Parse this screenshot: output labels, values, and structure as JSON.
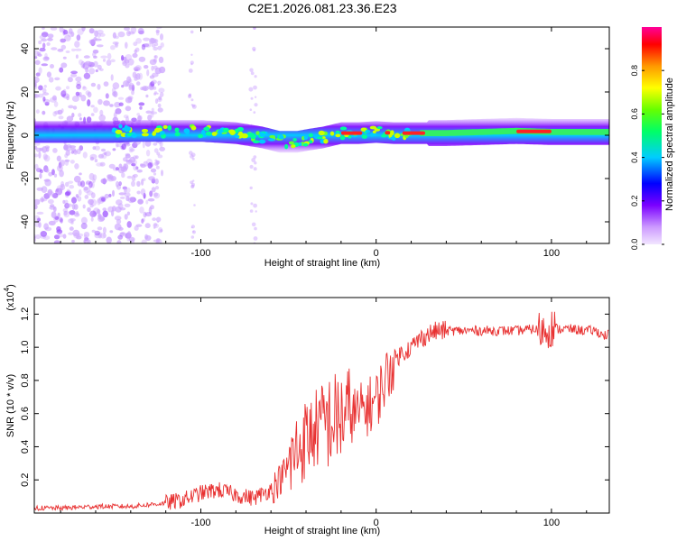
{
  "figure_title": "C2E1.2026.081.23.36.E23",
  "chart_data": [
    {
      "type": "heatmap",
      "title": "C2E1.2026.081.23.36.E23",
      "xlabel": "Height of straight line (km)",
      "ylabel": "Frequency (Hz)",
      "xlim": [
        -195,
        133
      ],
      "ylim": [
        -50,
        50
      ],
      "x_ticks": [
        -100,
        0,
        100
      ],
      "x_tick_labels": [
        "-100",
        "0",
        "100"
      ],
      "y_ticks": [
        -40,
        -20,
        0,
        20,
        40
      ],
      "y_tick_labels": [
        "-40",
        "-20",
        "0",
        "20",
        "40"
      ],
      "colorbar": {
        "label": "Normalized spectral amplitude",
        "range": [
          0,
          1
        ],
        "ticks": [
          0.0,
          0.2,
          0.4,
          0.6,
          0.8
        ],
        "tick_labels": [
          "0.0",
          "0.2",
          "0.4",
          "0.6",
          "0.8"
        ],
        "colors": [
          "#cc99ff",
          "#7a00ff",
          "#0000ff",
          "#00ccff",
          "#00ff66",
          "#66ff00",
          "#ffff00",
          "#ff9900",
          "#ff0000",
          "#ff0099"
        ]
      },
      "band_center_trace": {
        "x": [
          -195,
          -150,
          -135,
          -100,
          -80,
          -65,
          -55,
          -45,
          -38,
          -30,
          -20,
          -10,
          0,
          10,
          20,
          40,
          60,
          80,
          100,
          115,
          133
        ],
        "y": [
          1.5,
          1.5,
          2,
          2,
          1,
          -1,
          -3,
          -3,
          -2,
          -1,
          1,
          1,
          1.5,
          1,
          1,
          1,
          1.5,
          2,
          1.5,
          1.5,
          1.5
        ]
      },
      "noise_region_km": [
        -195,
        -130
      ]
    },
    {
      "type": "line",
      "xlabel": "Height of straight line (km)",
      "ylabel": "SNR (10 * v/v)",
      "y_multiplier_label": "(x10",
      "y_multiplier_exponent": "4",
      "y_multiplier_close": ")",
      "xlim": [
        -195,
        133
      ],
      "ylim": [
        0,
        1.3
      ],
      "x_ticks": [
        -100,
        0,
        100
      ],
      "x_tick_labels": [
        "-100",
        "0",
        "100"
      ],
      "y_ticks": [
        0.2,
        0.4,
        0.6,
        0.8,
        1.0,
        1.2
      ],
      "y_tick_labels": [
        "0.2",
        "0.4",
        "0.6",
        "0.8",
        "1.0",
        "1.2"
      ],
      "series": [
        {
          "name": "SNR",
          "color": "#e83030",
          "x": [
            -195,
            -180,
            -160,
            -140,
            -120,
            -110,
            -100,
            -90,
            -80,
            -70,
            -60,
            -55,
            -50,
            -45,
            -40,
            -35,
            -30,
            -25,
            -20,
            -15,
            -10,
            -5,
            0,
            5,
            10,
            15,
            20,
            25,
            30,
            35,
            40,
            50,
            60,
            70,
            80,
            90,
            95,
            100,
            105,
            110,
            120,
            125,
            130,
            133
          ],
          "y": [
            0.03,
            0.03,
            0.04,
            0.04,
            0.06,
            0.08,
            0.12,
            0.14,
            0.11,
            0.09,
            0.14,
            0.2,
            0.28,
            0.38,
            0.45,
            0.5,
            0.55,
            0.55,
            0.58,
            0.6,
            0.6,
            0.64,
            0.68,
            0.8,
            0.92,
            0.97,
            1.0,
            1.05,
            1.08,
            1.1,
            1.1,
            1.1,
            1.1,
            1.1,
            1.1,
            1.11,
            1.1,
            1.12,
            1.11,
            1.11,
            1.1,
            1.1,
            1.07,
            1.08
          ]
        }
      ]
    }
  ]
}
